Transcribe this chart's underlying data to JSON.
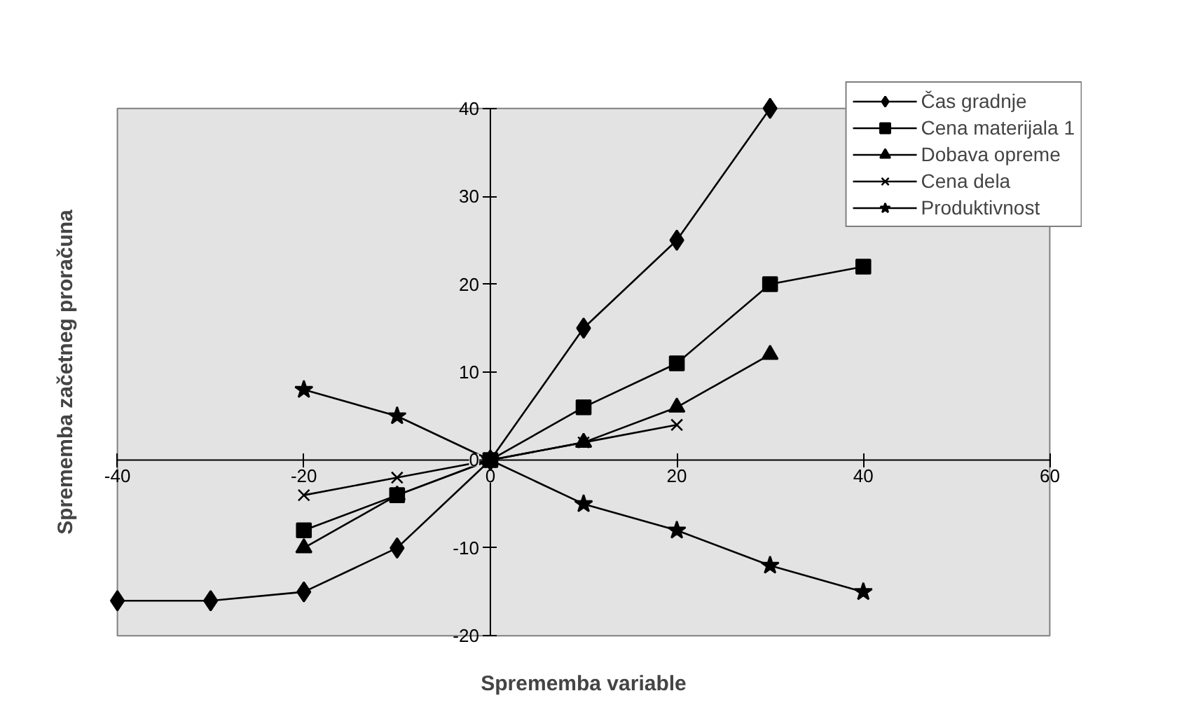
{
  "chart_data": {
    "type": "line",
    "xlabel": "Sprememba variable",
    "ylabel": "Sprememba začetneg proračuna",
    "xlim": [
      -40,
      60
    ],
    "ylim": [
      -20,
      40
    ],
    "xticks": [
      -40,
      -20,
      0,
      20,
      40,
      60
    ],
    "yticks": [
      -20,
      -10,
      0,
      10,
      20,
      30,
      40
    ],
    "grid": false,
    "legend": "top right",
    "line_style": "solid",
    "series": [
      {
        "name": "Čas gradnje",
        "color": "#000000",
        "marker": "diamond",
        "x": [
          -40,
          -30,
          -20,
          -10,
          0,
          10,
          20,
          30
        ],
        "values": [
          -16,
          -16,
          -15,
          -10,
          0,
          15,
          25,
          40
        ]
      },
      {
        "name": "Cena materijala 1",
        "color": "#000000",
        "marker": "square",
        "x": [
          -20,
          -10,
          0,
          10,
          20,
          30,
          40
        ],
        "values": [
          -8,
          -4,
          0,
          6,
          11,
          20,
          22
        ]
      },
      {
        "name": "Dobava opreme",
        "color": "#000000",
        "marker": "triangle",
        "x": [
          -20,
          -10,
          0,
          10,
          20,
          30
        ],
        "values": [
          -10,
          -4,
          0,
          2,
          6,
          12
        ]
      },
      {
        "name": "Cena dela",
        "color": "#000000",
        "marker": "cross",
        "x": [
          -20,
          -10,
          0,
          10,
          20
        ],
        "values": [
          -4,
          -2,
          0,
          2,
          4
        ]
      },
      {
        "name": "Produktivnost",
        "color": "#000000",
        "marker": "star",
        "x": [
          -20,
          -10,
          0,
          10,
          20,
          30,
          40
        ],
        "values": [
          8,
          5,
          0,
          -5,
          -8,
          -12,
          -15
        ]
      }
    ]
  }
}
